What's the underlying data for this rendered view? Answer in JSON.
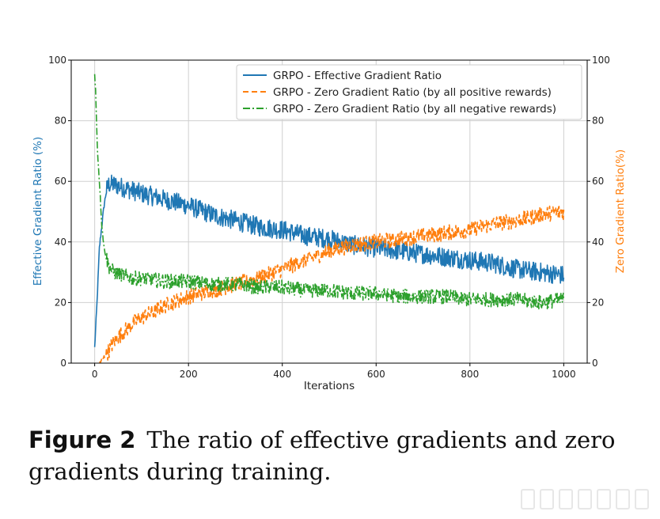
{
  "chart_data": {
    "type": "line",
    "title": "",
    "xlabel": "Iterations",
    "ylabel_left": "Effective Gradient Ratio (%)",
    "ylabel_right": "Zero Gradient Ratio(%)",
    "xlim": [
      -50,
      1050
    ],
    "ylim": [
      0,
      100
    ],
    "xticks": [
      0,
      200,
      400,
      600,
      800,
      1000
    ],
    "yticks": [
      0,
      20,
      40,
      60,
      80,
      100
    ],
    "grid": true,
    "legend_position": "top-right",
    "series": [
      {
        "name": "GRPO - Effective Gradient Ratio",
        "axis": "left",
        "color": "#1f77b4",
        "style": "solid",
        "x": [
          0,
          5,
          10,
          15,
          20,
          25,
          30,
          40,
          60,
          80,
          100,
          150,
          200,
          250,
          300,
          350,
          400,
          450,
          500,
          550,
          600,
          650,
          700,
          750,
          800,
          850,
          900,
          950,
          1000
        ],
        "values": [
          5,
          20,
          38,
          45,
          52,
          57,
          59,
          59,
          58,
          57,
          56,
          54,
          52,
          49,
          47,
          45,
          44,
          42,
          41,
          39,
          38,
          37,
          36,
          35,
          34,
          33,
          31,
          30,
          29
        ]
      },
      {
        "name": "GRPO - Zero Gradient Ratio (by all positive rewards)",
        "axis": "right",
        "color": "#ff7f0e",
        "style": "dashed",
        "x": [
          10,
          20,
          30,
          40,
          60,
          80,
          100,
          150,
          200,
          250,
          300,
          350,
          400,
          450,
          500,
          550,
          600,
          650,
          700,
          750,
          800,
          850,
          900,
          950,
          1000
        ],
        "values": [
          0,
          2,
          4,
          7,
          10,
          13,
          15,
          19,
          22,
          24,
          26,
          28,
          31,
          34,
          37,
          39,
          40,
          41,
          42,
          43,
          44,
          46,
          47,
          49,
          50
        ]
      },
      {
        "name": "GRPO - Zero Gradient Ratio (by all negative rewards)",
        "axis": "right",
        "color": "#2ca02c",
        "style": "dashdot",
        "x": [
          0,
          2,
          4,
          6,
          8,
          10,
          12,
          15,
          20,
          30,
          40,
          60,
          80,
          100,
          150,
          200,
          250,
          300,
          350,
          400,
          450,
          500,
          550,
          600,
          650,
          700,
          750,
          800,
          850,
          900,
          950,
          1000
        ],
        "values": [
          95,
          90,
          80,
          70,
          65,
          60,
          55,
          46,
          38,
          32,
          30,
          29,
          28,
          28,
          27,
          27,
          26,
          26,
          25,
          25,
          24,
          24,
          23,
          23,
          22,
          22,
          22,
          21,
          21,
          21,
          20,
          21
        ]
      }
    ]
  },
  "caption": {
    "label": "Figure 2",
    "text": "The ratio of effective gradients and zero gradients during training."
  }
}
